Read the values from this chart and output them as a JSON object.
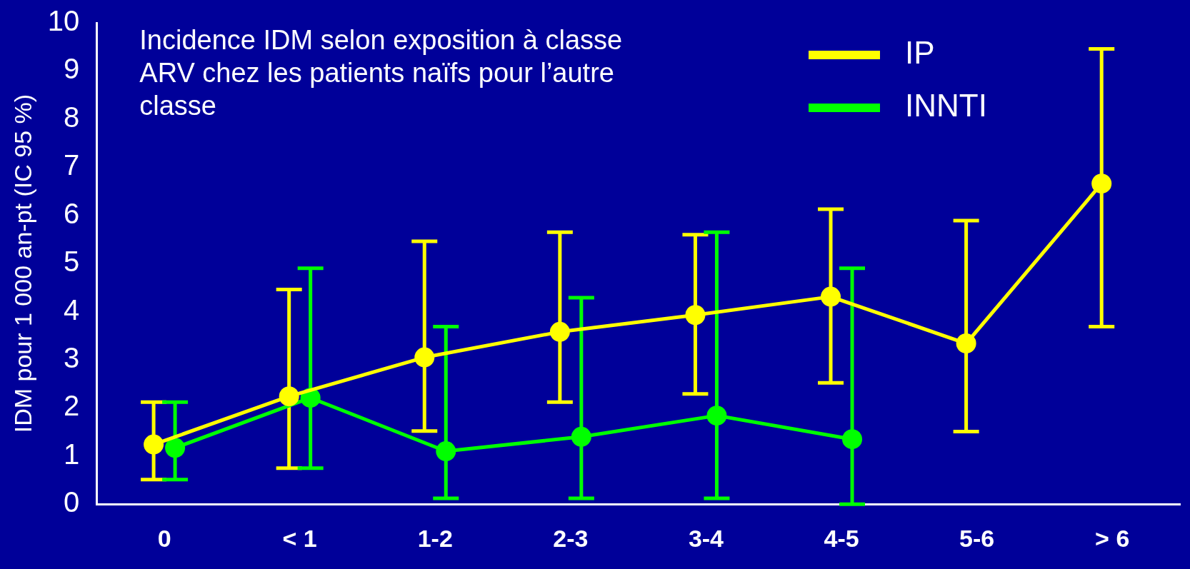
{
  "chart_data": {
    "type": "line",
    "title": "Incidence IDM selon exposition à classe ARV chez les patients naïfs pour l’autre classe",
    "ylabel": "IDM pour 1 000 an-pt (IC 95 %)",
    "categories": [
      "0",
      "< 1",
      "1-2",
      "2-3",
      "3-4",
      "4-5",
      "5-6",
      "> 6"
    ],
    "series": [
      {
        "name": "IP",
        "color": "#ffff00",
        "values": [
          1.24,
          2.24,
          3.05,
          3.58,
          3.93,
          4.31,
          3.34,
          6.66
        ],
        "errors": [
          [
            0.51,
            2.12
          ],
          [
            0.75,
            4.46
          ],
          [
            1.52,
            5.46
          ],
          [
            2.12,
            5.65
          ],
          [
            2.29,
            5.6
          ],
          [
            2.52,
            6.13
          ],
          [
            1.51,
            5.89
          ],
          [
            3.69,
            9.46
          ]
        ]
      },
      {
        "name": "INNTI",
        "color": "#00ff00",
        "values": [
          1.17,
          2.21,
          1.1,
          1.4,
          1.84,
          1.35,
          null,
          null
        ],
        "errors": [
          [
            0.51,
            2.12
          ],
          [
            0.75,
            4.9
          ],
          [
            0.12,
            3.69
          ],
          [
            0.12,
            4.29
          ],
          [
            0.12,
            5.65
          ],
          [
            0,
            4.9
          ],
          null,
          null
        ]
      }
    ],
    "ylim": [
      0,
      10
    ],
    "yticks": [
      0,
      1,
      2,
      3,
      4,
      5,
      6,
      7,
      8,
      9,
      10
    ],
    "grid": false,
    "legend": "top right",
    "marker": "circle",
    "line_style": "solid"
  }
}
